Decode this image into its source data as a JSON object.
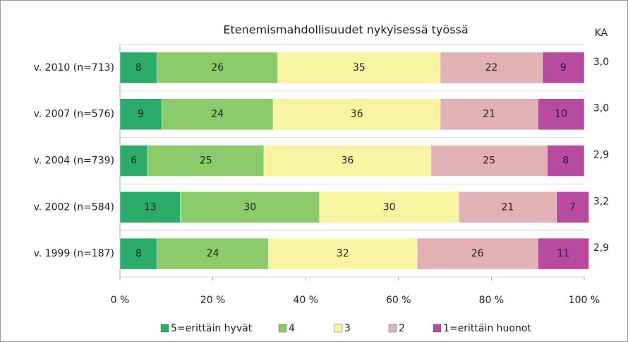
{
  "chart_data": {
    "type": "stacked_bar_horizontal",
    "title": "Etenemismahdollisuudet nykyisessä työssä",
    "categories": [
      "v. 2010 (n=713)",
      "v. 2007 (n=576)",
      "v. 2004 (n=739)",
      "v. 2002 (n=584)",
      "v. 1999 (n=187)"
    ],
    "series": [
      {
        "name": "5=erittäin hyvät",
        "color": "#2bab6a",
        "values": [
          8,
          9,
          6,
          13,
          8
        ]
      },
      {
        "name": "4",
        "color": "#8ccb6a",
        "values": [
          26,
          24,
          25,
          30,
          24
        ]
      },
      {
        "name": "3",
        "color": "#f8f4a2",
        "values": [
          35,
          36,
          36,
          30,
          32
        ]
      },
      {
        "name": "2",
        "color": "#e1b1b5",
        "values": [
          22,
          21,
          25,
          21,
          26
        ]
      },
      {
        "name": "1=erittäin huonot",
        "color": "#b84a9f",
        "values": [
          9,
          10,
          8,
          7,
          11
        ]
      }
    ],
    "xlim": [
      0,
      100
    ],
    "xticks": [
      {
        "value": 0,
        "label": "0 %"
      },
      {
        "value": 20,
        "label": "20 %"
      },
      {
        "value": 40,
        "label": "40 %"
      },
      {
        "value": 60,
        "label": "60 %"
      },
      {
        "value": 80,
        "label": "80 %"
      },
      {
        "value": 100,
        "label": "100 %"
      }
    ],
    "ka": {
      "title": "KA",
      "values": [
        3.0,
        3.0,
        2.9,
        3.2,
        2.9
      ],
      "value_labels": [
        "3,0",
        "3,0",
        "2,9",
        "3,2",
        "2,9"
      ]
    },
    "legend": "bottom"
  }
}
